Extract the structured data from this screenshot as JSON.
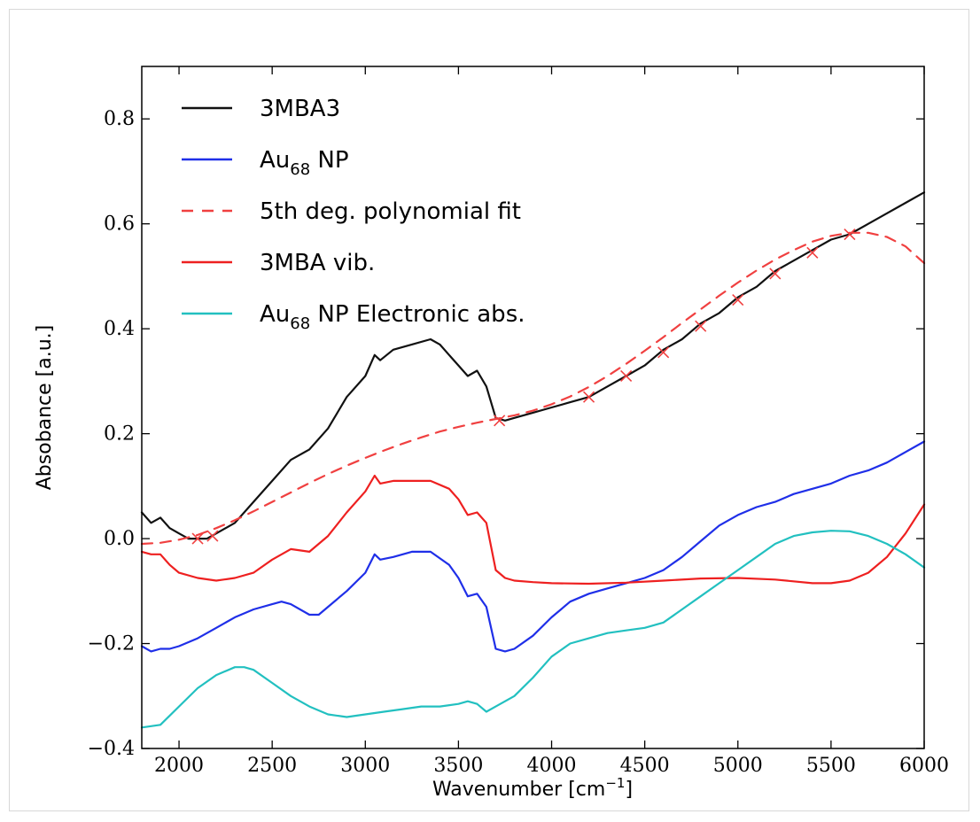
{
  "chart_data": {
    "type": "line",
    "title": "",
    "xlabel": "Wavenumber [cm",
    "xlabel_superscript": "−1",
    "xlabel_suffix": "]",
    "ylabel": "Absobance [a.u.]",
    "xlim": [
      1800,
      6000
    ],
    "ylim": [
      -0.4,
      0.9
    ],
    "xticks": [
      2000,
      2500,
      3000,
      3500,
      4000,
      4500,
      5000,
      5500,
      6000
    ],
    "xtick_labels": [
      "2000",
      "2500",
      "3000",
      "3500",
      "4000",
      "4500",
      "5000",
      "5500",
      "6000"
    ],
    "yticks": [
      -0.4,
      -0.2,
      0.0,
      0.2,
      0.4,
      0.6,
      0.8
    ],
    "ytick_labels": [
      "−0.4",
      "−0.2",
      "0.0",
      "0.2",
      "0.4",
      "0.6",
      "0.8"
    ],
    "grid": false,
    "legend_position": "top-left",
    "legend": [
      {
        "text": "3MBA3",
        "sub": "",
        "suffix": "",
        "color": "#111111",
        "dash": false
      },
      {
        "text": "Au",
        "sub": "68",
        "suffix": " NP",
        "color": "#1f2fe8",
        "dash": false
      },
      {
        "text": "5th deg. polynomial fit",
        "sub": "",
        "suffix": "",
        "color": "#f04040",
        "dash": true
      },
      {
        "text": "3MBA vib.",
        "sub": "",
        "suffix": "",
        "color": "#ee2020",
        "dash": false
      },
      {
        "text": "Au",
        "sub": "68",
        "suffix": " NP Electronic abs.",
        "color": "#22c0c0",
        "dash": false
      }
    ],
    "series": [
      {
        "name": "3MBA3",
        "color": "#111111",
        "dash": false,
        "x": [
          1800,
          1850,
          1900,
          1950,
          2000,
          2050,
          2100,
          2150,
          2200,
          2300,
          2400,
          2500,
          2600,
          2700,
          2800,
          2900,
          3000,
          3050,
          3080,
          3150,
          3250,
          3350,
          3400,
          3450,
          3500,
          3550,
          3600,
          3650,
          3700,
          3750,
          3800,
          3900,
          4000,
          4100,
          4200,
          4300,
          4400,
          4500,
          4600,
          4700,
          4800,
          4900,
          5000,
          5100,
          5200,
          5300,
          5400,
          5500,
          5600,
          5700,
          5800,
          5900,
          6000
        ],
        "y": [
          0.05,
          0.03,
          0.04,
          0.02,
          0.01,
          0.0,
          0.0,
          0.0,
          0.01,
          0.03,
          0.07,
          0.11,
          0.15,
          0.17,
          0.21,
          0.27,
          0.31,
          0.35,
          0.34,
          0.36,
          0.37,
          0.38,
          0.37,
          0.35,
          0.33,
          0.31,
          0.32,
          0.29,
          0.23,
          0.225,
          0.23,
          0.24,
          0.25,
          0.26,
          0.27,
          0.29,
          0.31,
          0.33,
          0.36,
          0.38,
          0.41,
          0.43,
          0.46,
          0.48,
          0.51,
          0.53,
          0.55,
          0.57,
          0.58,
          0.6,
          0.62,
          0.64,
          0.66
        ]
      },
      {
        "name": "Au68 NP",
        "color": "#1f2fe8",
        "dash": false,
        "x": [
          1800,
          1850,
          1900,
          1950,
          2000,
          2100,
          2200,
          2300,
          2400,
          2500,
          2550,
          2600,
          2700,
          2750,
          2800,
          2900,
          3000,
          3050,
          3080,
          3150,
          3250,
          3350,
          3450,
          3500,
          3550,
          3600,
          3650,
          3700,
          3750,
          3800,
          3900,
          4000,
          4100,
          4200,
          4300,
          4400,
          4500,
          4600,
          4700,
          4800,
          4900,
          5000,
          5100,
          5200,
          5300,
          5400,
          5500,
          5600,
          5700,
          5800,
          5900,
          6000
        ],
        "y": [
          -0.205,
          -0.215,
          -0.21,
          -0.21,
          -0.205,
          -0.19,
          -0.17,
          -0.15,
          -0.135,
          -0.125,
          -0.12,
          -0.125,
          -0.145,
          -0.145,
          -0.13,
          -0.1,
          -0.065,
          -0.03,
          -0.04,
          -0.035,
          -0.025,
          -0.025,
          -0.05,
          -0.075,
          -0.11,
          -0.105,
          -0.13,
          -0.21,
          -0.215,
          -0.21,
          -0.185,
          -0.15,
          -0.12,
          -0.105,
          -0.095,
          -0.085,
          -0.075,
          -0.06,
          -0.035,
          -0.005,
          0.025,
          0.045,
          0.06,
          0.07,
          0.085,
          0.095,
          0.105,
          0.12,
          0.13,
          0.145,
          0.165,
          0.185
        ]
      },
      {
        "name": "5th deg. polynomial fit",
        "color": "#f04040",
        "dash": true,
        "x": [
          1800,
          1900,
          2000,
          2100,
          2200,
          2300,
          2400,
          2500,
          2600,
          2700,
          2800,
          2900,
          3000,
          3100,
          3200,
          3300,
          3400,
          3500,
          3600,
          3700,
          3800,
          3900,
          4000,
          4100,
          4200,
          4300,
          4400,
          4500,
          4600,
          4700,
          4800,
          4900,
          5000,
          5100,
          5200,
          5300,
          5400,
          5500,
          5600,
          5700,
          5800,
          5900,
          6000
        ],
        "y": [
          -0.01,
          -0.008,
          -0.002,
          0.007,
          0.02,
          0.035,
          0.052,
          0.07,
          0.088,
          0.106,
          0.123,
          0.139,
          0.154,
          0.168,
          0.181,
          0.193,
          0.204,
          0.213,
          0.221,
          0.228,
          0.235,
          0.244,
          0.256,
          0.271,
          0.289,
          0.31,
          0.333,
          0.358,
          0.384,
          0.411,
          0.437,
          0.463,
          0.488,
          0.511,
          0.532,
          0.55,
          0.566,
          0.577,
          0.583,
          0.583,
          0.575,
          0.557,
          0.525
        ]
      },
      {
        "name": "3MBA vib.",
        "color": "#ee2020",
        "dash": false,
        "x": [
          1800,
          1850,
          1900,
          1950,
          2000,
          2100,
          2200,
          2300,
          2400,
          2500,
          2600,
          2700,
          2800,
          2900,
          3000,
          3050,
          3080,
          3150,
          3250,
          3350,
          3450,
          3500,
          3550,
          3600,
          3650,
          3700,
          3750,
          3800,
          3900,
          4000,
          4200,
          4400,
          4600,
          4800,
          5000,
          5200,
          5400,
          5500,
          5600,
          5700,
          5800,
          5900,
          6000
        ],
        "y": [
          -0.025,
          -0.03,
          -0.03,
          -0.05,
          -0.065,
          -0.075,
          -0.08,
          -0.075,
          -0.065,
          -0.04,
          -0.02,
          -0.025,
          0.005,
          0.05,
          0.09,
          0.12,
          0.105,
          0.11,
          0.11,
          0.11,
          0.095,
          0.075,
          0.045,
          0.05,
          0.03,
          -0.06,
          -0.075,
          -0.08,
          -0.083,
          -0.085,
          -0.086,
          -0.084,
          -0.08,
          -0.076,
          -0.075,
          -0.078,
          -0.085,
          -0.085,
          -0.08,
          -0.065,
          -0.035,
          0.01,
          0.065
        ]
      },
      {
        "name": "Au68 NP Electronic abs.",
        "color": "#22c0c0",
        "dash": false,
        "x": [
          1800,
          1900,
          2000,
          2100,
          2200,
          2300,
          2350,
          2400,
          2500,
          2600,
          2700,
          2800,
          2900,
          3000,
          3100,
          3200,
          3300,
          3400,
          3500,
          3550,
          3600,
          3650,
          3700,
          3800,
          3900,
          4000,
          4100,
          4200,
          4300,
          4400,
          4500,
          4600,
          4700,
          4800,
          4900,
          5000,
          5100,
          5200,
          5300,
          5400,
          5500,
          5600,
          5700,
          5800,
          5900,
          6000
        ],
        "y": [
          -0.36,
          -0.355,
          -0.32,
          -0.285,
          -0.26,
          -0.245,
          -0.245,
          -0.25,
          -0.275,
          -0.3,
          -0.32,
          -0.335,
          -0.34,
          -0.335,
          -0.33,
          -0.325,
          -0.32,
          -0.32,
          -0.315,
          -0.31,
          -0.315,
          -0.33,
          -0.32,
          -0.3,
          -0.265,
          -0.225,
          -0.2,
          -0.19,
          -0.18,
          -0.175,
          -0.17,
          -0.16,
          -0.135,
          -0.11,
          -0.085,
          -0.06,
          -0.035,
          -0.01,
          0.005,
          0.012,
          0.015,
          0.014,
          0.005,
          -0.01,
          -0.03,
          -0.055
        ]
      },
      {
        "name": "",
        "color": "#f04040",
        "marker": "x",
        "x": [
          2100,
          2180,
          3720,
          4200,
          4400,
          4600,
          4800,
          5000,
          5200,
          5400,
          5600
        ],
        "y": [
          0.0,
          0.005,
          0.225,
          0.27,
          0.31,
          0.355,
          0.405,
          0.455,
          0.505,
          0.545,
          0.58
        ]
      }
    ]
  }
}
